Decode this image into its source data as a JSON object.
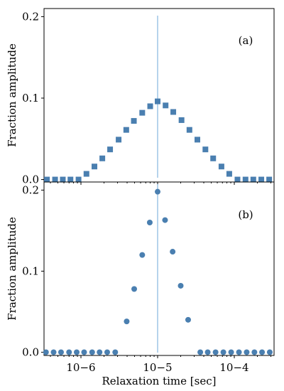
{
  "chart_data": [
    {
      "type": "scatter",
      "panel_label": "(a)",
      "marker": "square",
      "ylabel": "Fraction amplitude",
      "xlabel": "",
      "xscale": "log",
      "xlim": [
        3.3e-07,
        0.00033
      ],
      "ylim": [
        -0.003,
        0.21
      ],
      "yticks": [
        {
          "value": 0.0,
          "label": "0.0"
        },
        {
          "value": 0.1,
          "label": "0.1"
        },
        {
          "value": 0.2,
          "label": "0.2"
        }
      ],
      "vline": 1e-05,
      "series": [
        {
          "points": [
            {
              "x": 3.6e-07,
              "y": 0.0
            },
            {
              "x": 4.6e-07,
              "y": 0.0
            },
            {
              "x": 5.8e-07,
              "y": 0.0
            },
            {
              "x": 7.3e-07,
              "y": 0.0
            },
            {
              "x": 9.3e-07,
              "y": 0.0
            },
            {
              "x": 1.18e-06,
              "y": 0.007
            },
            {
              "x": 1.5e-06,
              "y": 0.016
            },
            {
              "x": 1.9e-06,
              "y": 0.026
            },
            {
              "x": 2.4e-06,
              "y": 0.037
            },
            {
              "x": 3.1e-06,
              "y": 0.049
            },
            {
              "x": 3.9e-06,
              "y": 0.061
            },
            {
              "x": 4.9e-06,
              "y": 0.072
            },
            {
              "x": 6.3e-06,
              "y": 0.082
            },
            {
              "x": 8e-06,
              "y": 0.09
            },
            {
              "x": 1e-05,
              "y": 0.096
            },
            {
              "x": 1.27e-05,
              "y": 0.091
            },
            {
              "x": 1.6e-05,
              "y": 0.083
            },
            {
              "x": 2.05e-05,
              "y": 0.073
            },
            {
              "x": 2.6e-05,
              "y": 0.061
            },
            {
              "x": 3.3e-05,
              "y": 0.049
            },
            {
              "x": 4.2e-05,
              "y": 0.037
            },
            {
              "x": 5.3e-05,
              "y": 0.026
            },
            {
              "x": 6.8e-05,
              "y": 0.016
            },
            {
              "x": 8.6e-05,
              "y": 0.007
            },
            {
              "x": 0.00011,
              "y": 0.0
            },
            {
              "x": 0.00014,
              "y": 0.0
            },
            {
              "x": 0.000177,
              "y": 0.0
            },
            {
              "x": 0.000225,
              "y": 0.0
            },
            {
              "x": 0.000285,
              "y": 0.0
            }
          ]
        }
      ]
    },
    {
      "type": "scatter",
      "panel_label": "(b)",
      "marker": "circle",
      "ylabel": "Fraction amplitude",
      "xlabel": "Relaxation time [sec]",
      "xscale": "log",
      "xlim": [
        3.3e-07,
        0.00033
      ],
      "ylim": [
        -0.004,
        0.21
      ],
      "xticks": [
        {
          "value": 1e-06,
          "label": "10−6"
        },
        {
          "value": 1e-05,
          "label": "10−5"
        },
        {
          "value": 0.0001,
          "label": "10−4"
        }
      ],
      "yticks": [
        {
          "value": 0.0,
          "label": "0.0"
        },
        {
          "value": 0.1,
          "label": "0.1"
        },
        {
          "value": 0.2,
          "label": "0.2"
        }
      ],
      "vline": 1e-05,
      "series": [
        {
          "points": [
            {
              "x": 3.5e-07,
              "y": 0.0
            },
            {
              "x": 4.4e-07,
              "y": 0.0
            },
            {
              "x": 5.5e-07,
              "y": 0.0
            },
            {
              "x": 7e-07,
              "y": 0.0
            },
            {
              "x": 8.8e-07,
              "y": 0.0
            },
            {
              "x": 1.1e-06,
              "y": 0.0
            },
            {
              "x": 1.4e-06,
              "y": 0.0
            },
            {
              "x": 1.75e-06,
              "y": 0.0
            },
            {
              "x": 2.2e-06,
              "y": 0.0
            },
            {
              "x": 2.8e-06,
              "y": 0.0
            },
            {
              "x": 3.95e-06,
              "y": 0.038
            },
            {
              "x": 4.95e-06,
              "y": 0.078
            },
            {
              "x": 6.3e-06,
              "y": 0.12
            },
            {
              "x": 7.9e-06,
              "y": 0.16
            },
            {
              "x": 1e-05,
              "y": 0.198
            },
            {
              "x": 1.25e-05,
              "y": 0.163
            },
            {
              "x": 1.57e-05,
              "y": 0.124
            },
            {
              "x": 2e-05,
              "y": 0.082
            },
            {
              "x": 2.5e-05,
              "y": 0.04
            },
            {
              "x": 3.6e-05,
              "y": 0.0
            },
            {
              "x": 4.5e-05,
              "y": 0.0
            },
            {
              "x": 5.7e-05,
              "y": 0.0
            },
            {
              "x": 7.2e-05,
              "y": 0.0
            },
            {
              "x": 9.1e-05,
              "y": 0.0
            },
            {
              "x": 0.000115,
              "y": 0.0
            },
            {
              "x": 0.000145,
              "y": 0.0
            },
            {
              "x": 0.000183,
              "y": 0.0
            },
            {
              "x": 0.00023,
              "y": 0.0
            },
            {
              "x": 0.00029,
              "y": 0.0
            }
          ]
        }
      ]
    }
  ],
  "colors": {
    "marker": "#4a7fb0",
    "vline": "#6ea7d8",
    "axes": "#000000"
  }
}
